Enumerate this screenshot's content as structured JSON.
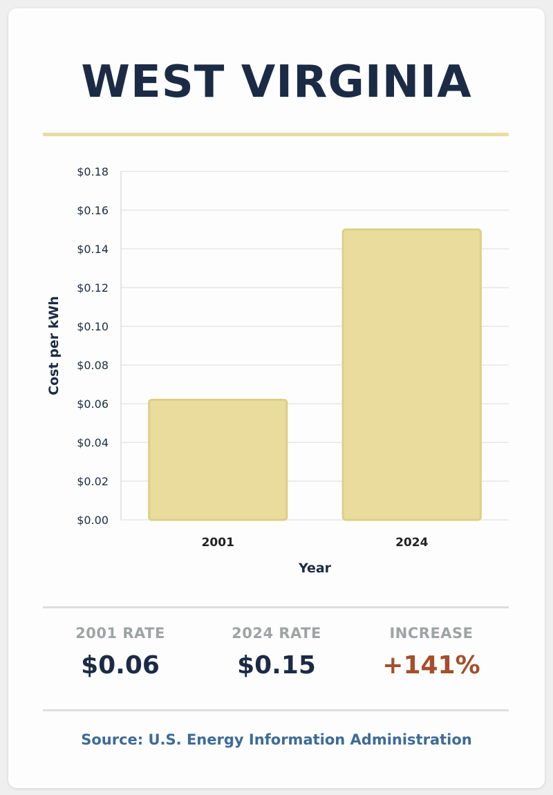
{
  "title": "WEST VIRGINIA",
  "chart_data": {
    "type": "bar",
    "categories": [
      "2001",
      "2024"
    ],
    "values": [
      0.062,
      0.15
    ],
    "xlabel": "Year",
    "ylabel": "Cost per kWh",
    "ylim": [
      0,
      0.18
    ],
    "yticks": [
      "$0.00",
      "$0.02",
      "$0.04",
      "$0.06",
      "$0.08",
      "$0.10",
      "$0.12",
      "$0.14",
      "$0.16",
      "$0.18"
    ],
    "grid": true,
    "bar_color": "#e9dc9d"
  },
  "stats": [
    {
      "label": "2001 RATE",
      "value": "$0.06"
    },
    {
      "label": "2024 RATE",
      "value": "$0.15"
    },
    {
      "label": "INCREASE",
      "value": "+141%"
    }
  ],
  "colors": {
    "title": "#1c2b45",
    "increase": "#a44e2b",
    "source": "#3d6b97"
  },
  "source": "Source: U.S. Energy Information Administration"
}
